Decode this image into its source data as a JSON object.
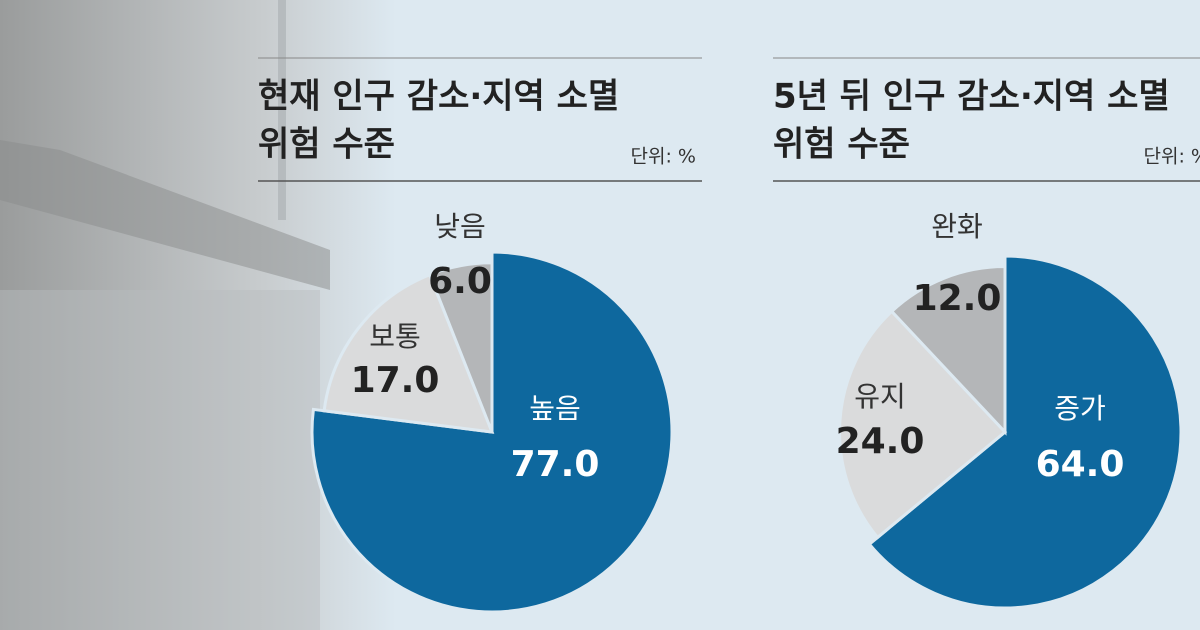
{
  "chart_data": [
    {
      "type": "pie",
      "title": [
        "현재 인구 감소·지역 소멸",
        "위험 수준"
      ],
      "unit": "단위: %",
      "categories": [
        "높음",
        "보통",
        "낮음"
      ],
      "values": [
        77.0,
        17.0,
        6.0
      ],
      "value_labels": [
        "77.0",
        "17.0",
        "6.0"
      ],
      "colors": [
        "#0e689e",
        "#dadbdc",
        "#b4b6b8"
      ]
    },
    {
      "type": "pie",
      "title": [
        "5년 뒤 인구 감소·지역 소멸",
        "위험 수준"
      ],
      "unit": "단위: %",
      "categories": [
        "증가",
        "유지",
        "완화"
      ],
      "values": [
        64.0,
        24.0,
        12.0
      ],
      "value_labels": [
        "64.0",
        "24.0",
        "12.0"
      ],
      "colors": [
        "#0e689e",
        "#dadbdc",
        "#b4b6b8"
      ]
    }
  ]
}
